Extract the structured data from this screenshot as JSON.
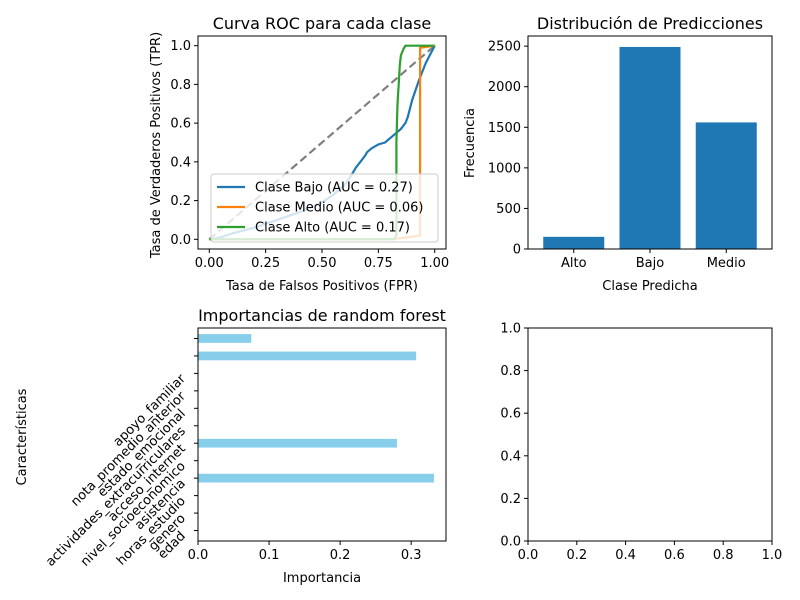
{
  "chart_data": [
    {
      "type": "line",
      "title": "Curva ROC para cada clase",
      "xlabel": "Tasa de Falsos Positivos (FPR)",
      "ylabel": "Tasa de Verdaderos Positivos (TPR)",
      "xlim": [
        -0.05,
        1.05
      ],
      "ylim": [
        -0.05,
        1.05
      ],
      "xticks": [
        "0.00",
        "0.25",
        "0.50",
        "0.75",
        "1.00"
      ],
      "xtick_values": [
        0,
        0.25,
        0.5,
        0.75,
        1.0
      ],
      "yticks": [
        "0.0",
        "0.2",
        "0.4",
        "0.6",
        "0.8",
        "1.0"
      ],
      "ytick_values": [
        0,
        0.2,
        0.4,
        0.6,
        0.8,
        1.0
      ],
      "legend_position": "lower-center",
      "diagonal": {
        "x": [
          0,
          1
        ],
        "y": [
          0,
          1
        ],
        "color": "#808080",
        "style": "dashed"
      },
      "series": [
        {
          "name": "Clase Bajo (AUC = 0.27)",
          "color": "#1f77b4",
          "x": [
            0.0,
            0.05,
            0.1,
            0.2,
            0.3,
            0.4,
            0.5,
            0.55,
            0.6,
            0.63,
            0.65,
            0.67,
            0.69,
            0.7,
            0.72,
            0.75,
            0.78,
            0.8,
            0.82,
            0.85,
            0.87,
            0.88,
            0.9,
            0.93,
            0.96,
            1.0
          ],
          "y": [
            0.0,
            0.01,
            0.03,
            0.06,
            0.1,
            0.14,
            0.19,
            0.23,
            0.28,
            0.33,
            0.37,
            0.4,
            0.43,
            0.45,
            0.47,
            0.49,
            0.5,
            0.52,
            0.54,
            0.57,
            0.6,
            0.63,
            0.72,
            0.82,
            0.91,
            1.0
          ]
        },
        {
          "name": "Clase Medio (AUC = 0.06)",
          "color": "#ff7f0e",
          "x": [
            0.0,
            0.5,
            0.7,
            0.8,
            0.88,
            0.935,
            0.935,
            0.94,
            1.0
          ],
          "y": [
            0.0,
            0.0,
            0.0,
            0.0,
            0.01,
            0.02,
            0.99,
            0.99,
            1.0
          ]
        },
        {
          "name": "Clase Alto (AUC = 0.17)",
          "color": "#2ca02c",
          "x": [
            0.0,
            0.5,
            0.82,
            0.83,
            0.83,
            0.835,
            0.84,
            0.845,
            0.85,
            0.86,
            0.87,
            0.9,
            0.95,
            1.0
          ],
          "y": [
            0.0,
            0.0,
            0.0,
            0.02,
            0.5,
            0.7,
            0.8,
            0.9,
            0.95,
            0.98,
            1.0,
            1.0,
            1.0,
            1.0
          ]
        }
      ]
    },
    {
      "type": "bar",
      "title": "Distribución de Predicciones",
      "xlabel": "Clase Predicha",
      "ylabel": "Frecuencia",
      "categories": [
        "Alto",
        "Bajo",
        "Medio"
      ],
      "values": [
        150,
        2490,
        1560
      ],
      "ylim": [
        0,
        2625
      ],
      "yticks": [
        "0",
        "500",
        "1000",
        "1500",
        "2000",
        "2500"
      ],
      "ytick_values": [
        0,
        500,
        1000,
        1500,
        2000,
        2500
      ],
      "color": "#1f77b4"
    },
    {
      "type": "bar",
      "orientation": "horizontal",
      "title": "Importancias de random forest",
      "xlabel": "Importancia",
      "ylabel": "Características",
      "categories": [
        "edad",
        "genero",
        "horas_estudio",
        "asistencia",
        "nivel_socioeconomico",
        "acceso_internet",
        "actividades_extracurriculares",
        "estado_emocional",
        "nota_promedio_anterior",
        "apoyo_familiar",
        "",
        ""
      ],
      "values": [
        0,
        0,
        0,
        0.332,
        0,
        0.28,
        0,
        0,
        0,
        0,
        0.307,
        0.075
      ],
      "xlim": [
        0,
        0.349
      ],
      "xticks": [
        "0.0",
        "0.1",
        "0.2",
        "0.3"
      ],
      "xtick_values": [
        0,
        0.1,
        0.2,
        0.3
      ],
      "color": "#87ceeb"
    },
    {
      "type": "line",
      "title": "",
      "xlim": [
        0,
        1
      ],
      "ylim": [
        0,
        1
      ],
      "xticks": [
        "0.0",
        "0.2",
        "0.4",
        "0.6",
        "0.8",
        "1.0"
      ],
      "xtick_values": [
        0,
        0.2,
        0.4,
        0.6,
        0.8,
        1.0
      ],
      "yticks": [
        "0.0",
        "0.2",
        "0.4",
        "0.6",
        "0.8",
        "1.0"
      ],
      "ytick_values": [
        0,
        0.2,
        0.4,
        0.6,
        0.8,
        1.0
      ],
      "series": []
    }
  ]
}
